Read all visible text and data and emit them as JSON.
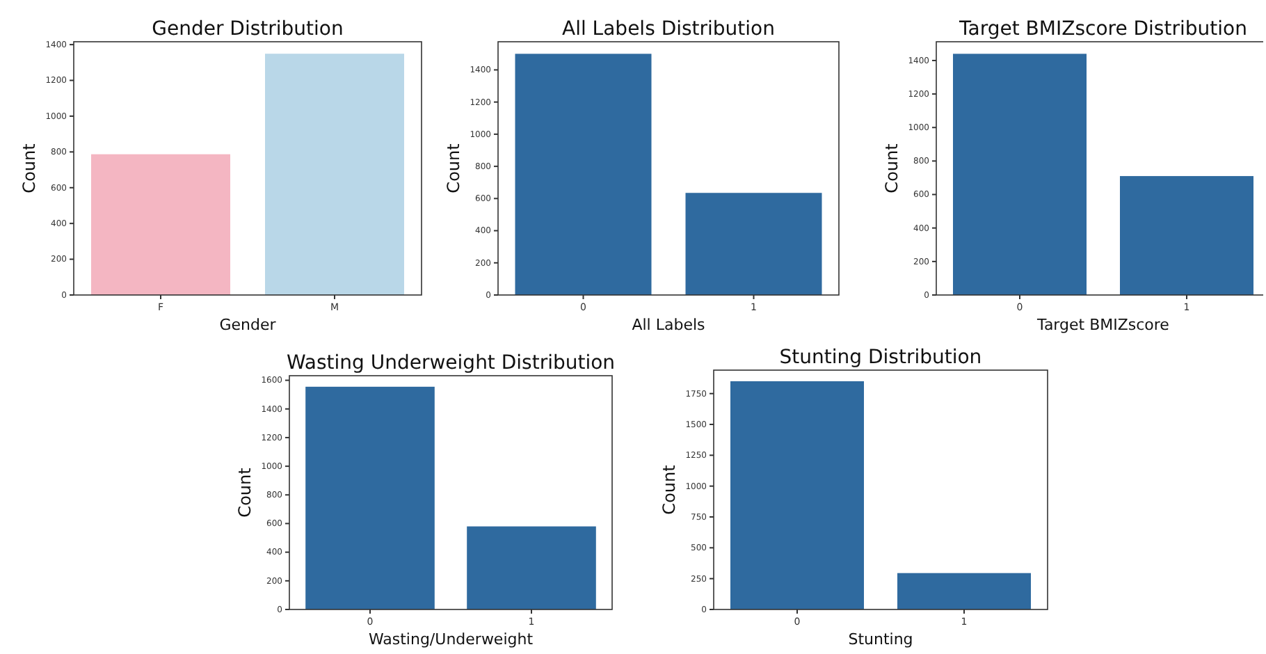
{
  "chart_data": [
    {
      "type": "bar",
      "title": "Gender Distribution",
      "xlabel": "Gender",
      "ylabel": "Count",
      "categories": [
        "F",
        "M"
      ],
      "values": [
        787,
        1349
      ],
      "colors": [
        "#f4b6c2",
        "#b9d7e8"
      ],
      "ylim": [
        0,
        1416
      ],
      "yticks": [
        0,
        200,
        400,
        600,
        800,
        1000,
        1200,
        1400
      ]
    },
    {
      "type": "bar",
      "title": "All Labels Distribution",
      "xlabel": "All Labels",
      "ylabel": "Count",
      "categories": [
        "0",
        "1"
      ],
      "values": [
        1500,
        635
      ],
      "colors": [
        "#2f6a9f",
        "#2f6a9f"
      ],
      "ylim": [
        0,
        1575
      ],
      "yticks": [
        0,
        200,
        400,
        600,
        800,
        1000,
        1200,
        1400
      ]
    },
    {
      "type": "bar",
      "title": "Target BMIZscore Distribution",
      "xlabel": "Target BMIZscore",
      "ylabel": "Count",
      "categories": [
        "0",
        "1"
      ],
      "values": [
        1440,
        710
      ],
      "colors": [
        "#2f6a9f",
        "#2f6a9f"
      ],
      "ylim": [
        0,
        1512
      ],
      "yticks": [
        0,
        200,
        400,
        600,
        800,
        1000,
        1200,
        1400
      ]
    },
    {
      "type": "bar",
      "title": "Wasting Underweight Distribution",
      "xlabel": "Wasting/Underweight",
      "ylabel": "Count",
      "categories": [
        "0",
        "1"
      ],
      "values": [
        1555,
        580
      ],
      "colors": [
        "#2f6a9f",
        "#2f6a9f"
      ],
      "ylim": [
        0,
        1632
      ],
      "yticks": [
        0,
        200,
        400,
        600,
        800,
        1000,
        1200,
        1400,
        1600
      ]
    },
    {
      "type": "bar",
      "title": "Stunting Distribution",
      "xlabel": "Stunting",
      "ylabel": "Count",
      "categories": [
        "0",
        "1"
      ],
      "values": [
        1850,
        295
      ],
      "colors": [
        "#2f6a9f",
        "#2f6a9f"
      ],
      "ylim": [
        0,
        1940
      ],
      "yticks": [
        0,
        250,
        500,
        750,
        1000,
        1250,
        1500,
        1750
      ]
    }
  ]
}
